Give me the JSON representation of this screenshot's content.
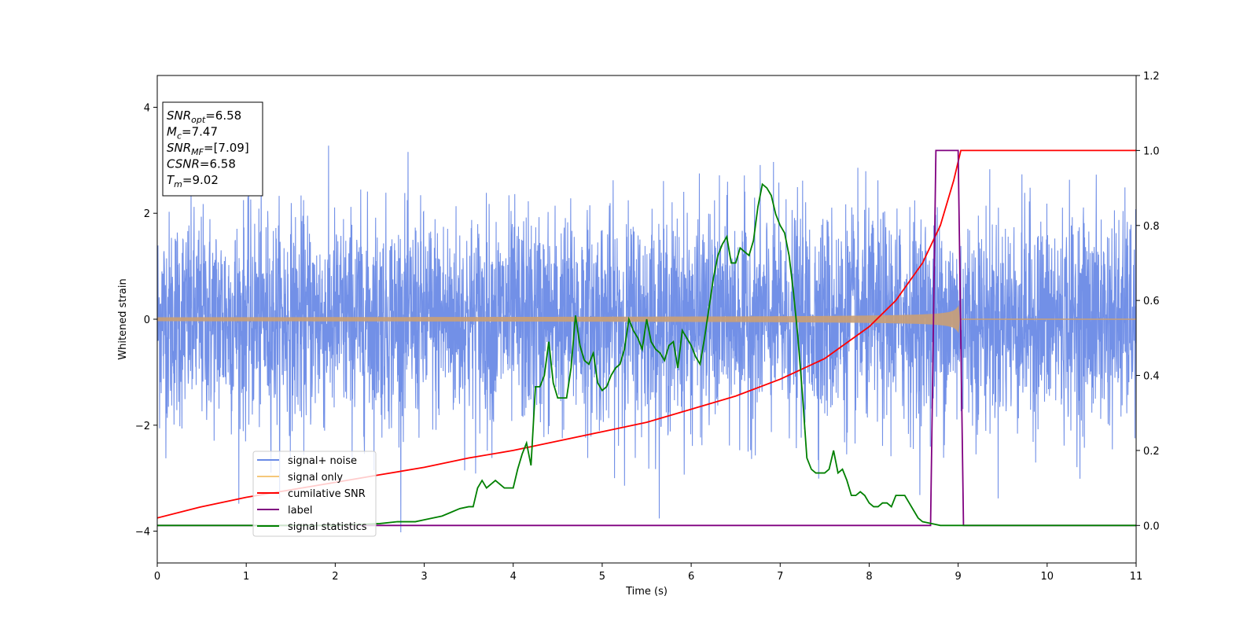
{
  "chart_data": {
    "type": "line",
    "xlabel": "Time (s)",
    "ylabel": "Whitened strain",
    "xlim": [
      0,
      11
    ],
    "ylim_left": [
      -4.6,
      4.6
    ],
    "ylim_right": [
      -0.1,
      1.2
    ],
    "x_ticks": [
      0,
      1,
      2,
      3,
      4,
      5,
      6,
      7,
      8,
      9,
      10,
      11
    ],
    "y_left_ticks": [
      -4,
      -2,
      0,
      2,
      4
    ],
    "y_right_ticks": [
      "0.0",
      "0.2",
      "0.4",
      "0.6",
      "0.8",
      "1.0",
      "1.2"
    ],
    "info_box": [
      {
        "name": "SNR",
        "sub": "opt",
        "value": "=6.58"
      },
      {
        "name": "M",
        "sub": "c",
        "value": "=7.47"
      },
      {
        "name": "SNR",
        "sub": "MF",
        "value": "=[7.09]"
      },
      {
        "name": "CSNR",
        "sub": "",
        "value": "=6.58"
      },
      {
        "name": "T",
        "sub": "m",
        "value": "=9.02"
      }
    ],
    "legend": {
      "placement": "lower-left",
      "entries": [
        {
          "label": "signal+ noise",
          "color": "#6a8ae6"
        },
        {
          "label": "signal only",
          "color": "#f5c77a"
        },
        {
          "label": "cumilative SNR",
          "color": "#ff0000"
        },
        {
          "label": "label",
          "color": "#800080"
        },
        {
          "label": "signal statistics",
          "color": "#008000"
        }
      ]
    },
    "series": [
      {
        "key": "signal_noise",
        "axis": "left",
        "color": "#6a8ae6",
        "style": "noise",
        "sigma": 1.0,
        "x_range": [
          0,
          11
        ]
      },
      {
        "key": "signal_only",
        "axis": "left",
        "color": "#c8a078",
        "style": "chirp_envelope",
        "merger_time": 9.02,
        "peak_amplitude": 0.55
      },
      {
        "key": "cumulative_snr",
        "axis": "right",
        "color": "#ff0000",
        "x": [
          0,
          0.5,
          1,
          1.5,
          2,
          2.5,
          3,
          3.5,
          4,
          4.5,
          5,
          5.5,
          6,
          6.5,
          7,
          7.5,
          8,
          8.3,
          8.6,
          8.8,
          8.95,
          9.02,
          9.03,
          11
        ],
        "y": [
          0.02,
          0.05,
          0.075,
          0.095,
          0.115,
          0.135,
          0.155,
          0.18,
          0.2,
          0.225,
          0.25,
          0.275,
          0.31,
          0.345,
          0.39,
          0.445,
          0.53,
          0.6,
          0.7,
          0.8,
          0.92,
          0.99,
          1.0,
          1.0
        ]
      },
      {
        "key": "label",
        "axis": "right",
        "color": "#800080",
        "x": [
          0,
          8.69,
          8.75,
          9.0,
          9.06,
          11
        ],
        "y": [
          0.0,
          0.0,
          1.0,
          1.0,
          0.0,
          0.0
        ]
      },
      {
        "key": "signal_statistics",
        "axis": "right",
        "color": "#008000",
        "x": [
          0,
          0.5,
          1.0,
          1.5,
          2.0,
          2.5,
          2.7,
          2.9,
          3.0,
          3.1,
          3.2,
          3.3,
          3.4,
          3.5,
          3.55,
          3.6,
          3.65,
          3.7,
          3.8,
          3.9,
          4.0,
          4.05,
          4.1,
          4.15,
          4.2,
          4.25,
          4.3,
          4.35,
          4.4,
          4.45,
          4.5,
          4.55,
          4.6,
          4.65,
          4.7,
          4.75,
          4.8,
          4.85,
          4.9,
          4.95,
          5.0,
          5.05,
          5.1,
          5.15,
          5.2,
          5.25,
          5.3,
          5.35,
          5.4,
          5.45,
          5.5,
          5.55,
          5.6,
          5.65,
          5.7,
          5.75,
          5.8,
          5.85,
          5.9,
          5.95,
          6.0,
          6.05,
          6.1,
          6.15,
          6.2,
          6.25,
          6.3,
          6.35,
          6.4,
          6.45,
          6.5,
          6.55,
          6.6,
          6.65,
          6.7,
          6.75,
          6.8,
          6.85,
          6.9,
          6.95,
          7.0,
          7.05,
          7.1,
          7.15,
          7.2,
          7.25,
          7.3,
          7.35,
          7.4,
          7.45,
          7.5,
          7.55,
          7.6,
          7.65,
          7.7,
          7.75,
          7.8,
          7.85,
          7.9,
          7.95,
          8.0,
          8.05,
          8.1,
          8.15,
          8.2,
          8.25,
          8.3,
          8.35,
          8.4,
          8.45,
          8.5,
          8.55,
          8.6,
          8.7,
          8.8,
          9.0,
          9.5,
          10,
          11
        ],
        "y": [
          0.0,
          0.0,
          0.0,
          0.0,
          0.0,
          0.005,
          0.01,
          0.01,
          0.015,
          0.02,
          0.025,
          0.035,
          0.045,
          0.05,
          0.05,
          0.1,
          0.12,
          0.1,
          0.12,
          0.1,
          0.1,
          0.15,
          0.19,
          0.22,
          0.16,
          0.37,
          0.37,
          0.4,
          0.49,
          0.38,
          0.34,
          0.34,
          0.34,
          0.42,
          0.56,
          0.48,
          0.44,
          0.43,
          0.46,
          0.38,
          0.36,
          0.37,
          0.4,
          0.42,
          0.43,
          0.47,
          0.55,
          0.52,
          0.5,
          0.47,
          0.55,
          0.49,
          0.47,
          0.46,
          0.44,
          0.48,
          0.49,
          0.42,
          0.52,
          0.5,
          0.48,
          0.45,
          0.43,
          0.5,
          0.58,
          0.66,
          0.72,
          0.75,
          0.77,
          0.7,
          0.7,
          0.74,
          0.73,
          0.72,
          0.76,
          0.85,
          0.91,
          0.9,
          0.88,
          0.83,
          0.8,
          0.78,
          0.72,
          0.62,
          0.5,
          0.35,
          0.18,
          0.15,
          0.14,
          0.14,
          0.14,
          0.15,
          0.2,
          0.14,
          0.15,
          0.12,
          0.08,
          0.08,
          0.09,
          0.08,
          0.06,
          0.05,
          0.05,
          0.06,
          0.06,
          0.05,
          0.08,
          0.08,
          0.08,
          0.06,
          0.04,
          0.02,
          0.01,
          0.005,
          0.0,
          0.0,
          0.0,
          0.0,
          0.0
        ]
      }
    ]
  }
}
